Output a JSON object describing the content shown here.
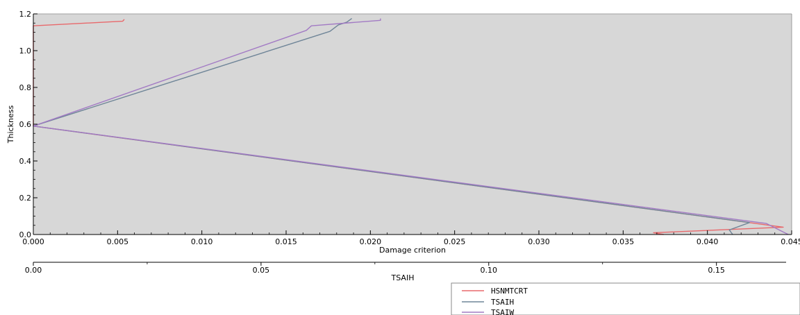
{
  "chart_data": {
    "type": "line",
    "xlabel": "Damage criterion",
    "ylabel": "Thickness",
    "secondary_xlabel": "TSAIH",
    "xlim": [
      0,
      0.045
    ],
    "ylim": [
      0,
      1.2
    ],
    "secondary_xlim": [
      0,
      0.1653
    ],
    "x_ticks": [
      "0.000",
      "0.005",
      "0.010",
      "0.015",
      "0.020",
      "0.025",
      "0.030",
      "0.035",
      "0.040",
      "0.045"
    ],
    "y_ticks": [
      "0.0",
      "0.2",
      "0.4",
      "0.6",
      "0.8",
      "1.0",
      "1.2"
    ],
    "secondary_x_ticks": [
      "0.00",
      "0.05",
      "0.10",
      "0.15"
    ],
    "secondary_x_tick_values": [
      0,
      0.05,
      0.1,
      0.15
    ],
    "grid": false,
    "background": "#d7d7d7",
    "legend_position": "bottom-right",
    "series": [
      {
        "name": "HSNMTCRT",
        "color": "#e8686b",
        "points": [
          [
            0.0054,
            1.17
          ],
          [
            0.0053,
            1.16
          ],
          [
            0.0,
            1.135
          ],
          [
            0.0,
            0.59
          ],
          [
            0.0445,
            0.04
          ],
          [
            0.0368,
            0.01
          ],
          [
            0.0374,
            0.0
          ]
        ]
      },
      {
        "name": "TSAIH",
        "color": "#6f8598",
        "points": [
          [
            0.0189,
            1.175
          ],
          [
            0.0186,
            1.155
          ],
          [
            0.0181,
            1.14
          ],
          [
            0.0176,
            1.105
          ],
          [
            0.0,
            0.59
          ],
          [
            0.0425,
            0.065
          ],
          [
            0.0413,
            0.025
          ],
          [
            0.0415,
            0.0
          ]
        ]
      },
      {
        "name": "TSAIW",
        "color": "#a27ac4",
        "points": [
          [
            0.0206,
            1.175
          ],
          [
            0.0206,
            1.165
          ],
          [
            0.0165,
            1.135
          ],
          [
            0.0162,
            1.11
          ],
          [
            0.0,
            0.59
          ],
          [
            0.0435,
            0.06
          ],
          [
            0.0448,
            0.0
          ]
        ]
      }
    ]
  }
}
